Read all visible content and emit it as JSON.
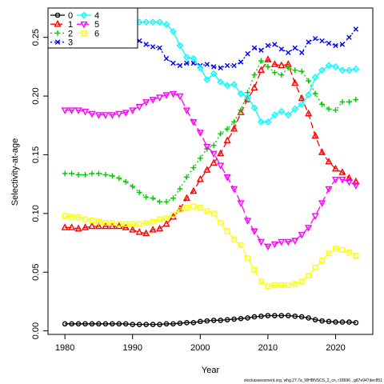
{
  "chart_data": {
    "type": "line",
    "title": "",
    "xlabel": "Year",
    "ylabel": "Selectivity-at-age",
    "xlim": [
      1977.5,
      2025.5
    ],
    "ylim": [
      -0.003,
      0.275
    ],
    "xticks": [
      1980,
      1990,
      2000,
      2010,
      2020
    ],
    "yticks": [
      0.0,
      0.05,
      0.1,
      0.15,
      0.2,
      0.25
    ],
    "ytick_labels": [
      "0.00",
      "0.05",
      "0.10",
      "0.15",
      "0.20",
      "0.25"
    ],
    "grid": false,
    "legend_position": "top-left",
    "x": [
      1980,
      1981,
      1982,
      1983,
      1984,
      1985,
      1986,
      1987,
      1988,
      1989,
      1990,
      1991,
      1992,
      1993,
      1994,
      1995,
      1996,
      1997,
      1998,
      1999,
      2000,
      2001,
      2002,
      2003,
      2004,
      2005,
      2006,
      2007,
      2008,
      2009,
      2010,
      2011,
      2012,
      2013,
      2014,
      2015,
      2016,
      2017,
      2018,
      2019,
      2020,
      2021,
      2022,
      2023
    ],
    "series": [
      {
        "name": "0",
        "color": "#000000",
        "marker": "circle",
        "dash": "solid",
        "values": [
          0.006,
          0.006,
          0.006,
          0.006,
          0.006,
          0.006,
          0.006,
          0.006,
          0.006,
          0.006,
          0.0055,
          0.0055,
          0.0055,
          0.0055,
          0.0055,
          0.006,
          0.006,
          0.0065,
          0.007,
          0.007,
          0.008,
          0.0085,
          0.009,
          0.009,
          0.0095,
          0.01,
          0.0105,
          0.011,
          0.012,
          0.0125,
          0.013,
          0.013,
          0.013,
          0.013,
          0.0125,
          0.012,
          0.011,
          0.0095,
          0.0085,
          0.008,
          0.0075,
          0.0075,
          0.0075,
          0.007
        ]
      },
      {
        "name": "1",
        "color": "#ff0000",
        "marker": "triangle-up",
        "dash": "8,4",
        "values": [
          0.088,
          0.088,
          0.087,
          0.088,
          0.089,
          0.089,
          0.089,
          0.089,
          0.089,
          0.088,
          0.086,
          0.084,
          0.083,
          0.086,
          0.087,
          0.091,
          0.097,
          0.104,
          0.113,
          0.119,
          0.129,
          0.137,
          0.143,
          0.151,
          0.162,
          0.172,
          0.186,
          0.197,
          0.207,
          0.222,
          0.231,
          0.227,
          0.226,
          0.227,
          0.211,
          0.198,
          0.185,
          0.166,
          0.152,
          0.144,
          0.138,
          0.135,
          0.13,
          0.127
        ]
      },
      {
        "name": "2",
        "color": "#00cc00",
        "marker": "plus",
        "dash": "2,3",
        "values": [
          0.134,
          0.134,
          0.133,
          0.133,
          0.134,
          0.134,
          0.133,
          0.132,
          0.13,
          0.127,
          0.123,
          0.118,
          0.114,
          0.113,
          0.11,
          0.11,
          0.113,
          0.121,
          0.131,
          0.139,
          0.147,
          0.155,
          0.158,
          0.168,
          0.172,
          0.178,
          0.188,
          0.203,
          0.218,
          0.23,
          0.225,
          0.22,
          0.218,
          0.224,
          0.222,
          0.221,
          0.213,
          0.202,
          0.193,
          0.189,
          0.188,
          0.195,
          0.195,
          0.197
        ]
      },
      {
        "name": "3",
        "color": "#0000ff",
        "marker": "cross",
        "dash": "2,3",
        "values": [
          0.262,
          0.259,
          0.26,
          0.258,
          0.255,
          0.254,
          0.255,
          0.253,
          0.251,
          0.249,
          0.248,
          0.247,
          0.244,
          0.242,
          0.241,
          0.232,
          0.228,
          0.226,
          0.228,
          0.228,
          0.226,
          0.227,
          0.225,
          0.224,
          0.226,
          0.226,
          0.229,
          0.236,
          0.241,
          0.239,
          0.243,
          0.244,
          0.24,
          0.237,
          0.241,
          0.237,
          0.246,
          0.249,
          0.247,
          0.245,
          0.243,
          0.244,
          0.25,
          0.257
        ]
      },
      {
        "name": "4",
        "color": "#00ffff",
        "marker": "diamond",
        "dash": "solid",
        "values": [
          0.244,
          0.244,
          0.247,
          0.25,
          0.254,
          0.255,
          0.257,
          0.26,
          0.262,
          0.263,
          0.262,
          0.263,
          0.263,
          0.263,
          0.263,
          0.261,
          0.255,
          0.243,
          0.233,
          0.232,
          0.224,
          0.214,
          0.219,
          0.212,
          0.209,
          0.21,
          0.202,
          0.199,
          0.19,
          0.178,
          0.178,
          0.184,
          0.187,
          0.184,
          0.189,
          0.193,
          0.201,
          0.216,
          0.222,
          0.226,
          0.225,
          0.222,
          0.222,
          0.223
        ]
      },
      {
        "name": "5",
        "color": "#ff00ff",
        "marker": "triangle-down",
        "dash": "10,4",
        "values": [
          0.188,
          0.188,
          0.188,
          0.187,
          0.185,
          0.184,
          0.184,
          0.184,
          0.185,
          0.186,
          0.188,
          0.191,
          0.195,
          0.197,
          0.199,
          0.201,
          0.202,
          0.2,
          0.188,
          0.178,
          0.169,
          0.157,
          0.151,
          0.141,
          0.131,
          0.121,
          0.109,
          0.094,
          0.085,
          0.076,
          0.072,
          0.074,
          0.076,
          0.076,
          0.077,
          0.082,
          0.088,
          0.098,
          0.109,
          0.121,
          0.129,
          0.129,
          0.127,
          0.124
        ]
      },
      {
        "name": "6",
        "color": "#ffff00",
        "marker": "square",
        "dash": "10,4",
        "values": [
          0.098,
          0.097,
          0.097,
          0.095,
          0.094,
          0.093,
          0.092,
          0.092,
          0.091,
          0.091,
          0.091,
          0.091,
          0.092,
          0.093,
          0.095,
          0.096,
          0.099,
          0.103,
          0.105,
          0.106,
          0.105,
          0.102,
          0.1,
          0.092,
          0.085,
          0.078,
          0.073,
          0.062,
          0.052,
          0.042,
          0.038,
          0.039,
          0.039,
          0.039,
          0.04,
          0.042,
          0.047,
          0.054,
          0.06,
          0.066,
          0.07,
          0.069,
          0.067,
          0.064
        ]
      }
    ]
  },
  "footer_text": "stockassessment.org, whg.27.7a_WHBNSCS_2_cn, r18696 , g87e947dec851"
}
